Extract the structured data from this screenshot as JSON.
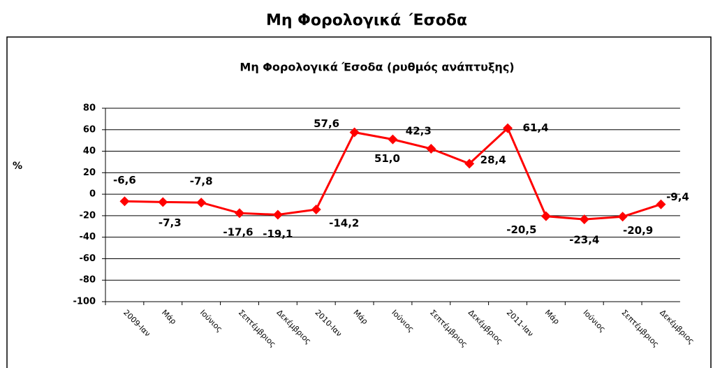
{
  "page_title": "Μη Φορολογικά ΄Εσοδα",
  "chart_data": {
    "type": "line",
    "title": "Μη Φορολογικά Έσοδα  (ρυθμός ανάπτυξης)",
    "y_label": "%",
    "categories": [
      "2009-Ιαν",
      "Μάρ",
      "Ιούνιος",
      "Σεπτέμβριος",
      "Δεκέμβριος",
      "2010-Ιαν",
      "Μάρ",
      "Ιούνιος",
      "Σεπτέμβριος",
      "Δεκέμβριος",
      "2011-Ιαν",
      "Μάρ",
      "Ιούνιος",
      "Σεπτέμβριος",
      "Δεκέμβριος"
    ],
    "series": [
      {
        "name": "Μη Φορολογικά Έσοδα",
        "color": "#ff0000",
        "values": [
          -6.6,
          -7.3,
          -7.8,
          -17.6,
          -19.1,
          -14.2,
          57.6,
          51.0,
          42.3,
          28.4,
          61.4,
          -20.5,
          -23.4,
          -20.9,
          -9.4
        ],
        "value_labels": [
          "-6,6",
          "-7,3",
          "-7,8",
          "-17,6",
          "-19,1",
          "-14,2",
          "57,6",
          "51,0",
          "42,3",
          "28,4",
          "61,4",
          "-20,5",
          "-23,4",
          "-20,9",
          "-9,4"
        ]
      }
    ],
    "ylim": [
      -100,
      80
    ],
    "yticks": [
      -100,
      -80,
      -60,
      -40,
      -20,
      0,
      20,
      40,
      60,
      80
    ],
    "grid": true
  }
}
